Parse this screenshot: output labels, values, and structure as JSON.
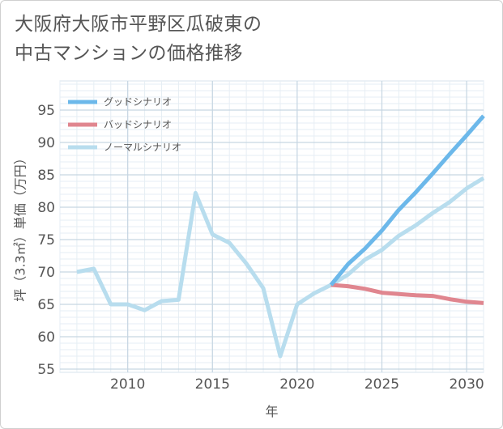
{
  "title": {
    "line1": "大阪府大阪市平野区瓜破東の",
    "line2": "中古マンションの価格推移"
  },
  "chart_data": {
    "type": "line",
    "title": "大阪府大阪市平野区瓜破東の中古マンションの価格推移",
    "xlabel": "年",
    "ylabel": "坪（3.3㎡）単価（万円）",
    "xlim": [
      2006,
      2031
    ],
    "ylim": [
      54.5,
      99.5
    ],
    "xticks": [
      2010,
      2015,
      2020,
      2025,
      2030
    ],
    "yticks": [
      55,
      60,
      65,
      70,
      75,
      80,
      85,
      90,
      95
    ],
    "grid": true,
    "legend_position": "top-left",
    "series": [
      {
        "name": "グッドシナリオ",
        "color": "#6cb8ea",
        "x": [
          2022,
          2023,
          2024,
          2025,
          2026,
          2027,
          2028,
          2029,
          2030,
          2031
        ],
        "values": [
          68,
          71.2,
          73.6,
          76.4,
          79.6,
          82.3,
          85.2,
          88.2,
          91.1,
          94.1
        ]
      },
      {
        "name": "バッドシナリオ",
        "color": "#e0868f",
        "x": [
          2022,
          2023,
          2024,
          2025,
          2026,
          2027,
          2028,
          2029,
          2030,
          2031
        ],
        "values": [
          68,
          67.8,
          67.4,
          66.8,
          66.6,
          66.4,
          66.3,
          65.8,
          65.4,
          65.2
        ]
      },
      {
        "name": "ノーマルシナリオ",
        "color": "#b8ddee",
        "x": [
          2007,
          2008,
          2009,
          2010,
          2011,
          2012,
          2013,
          2014,
          2015,
          2016,
          2017,
          2018,
          2019,
          2020,
          2021,
          2022,
          2023,
          2024,
          2025,
          2026,
          2027,
          2028,
          2029,
          2030,
          2031
        ],
        "values": [
          70,
          70.5,
          65,
          65,
          64.1,
          65.5,
          65.7,
          82.2,
          75.8,
          74.5,
          71.3,
          67.5,
          57,
          65,
          66.7,
          68,
          69.6,
          71.9,
          73.4,
          75.6,
          77.2,
          79.1,
          80.8,
          82.9,
          84.5
        ]
      }
    ]
  }
}
